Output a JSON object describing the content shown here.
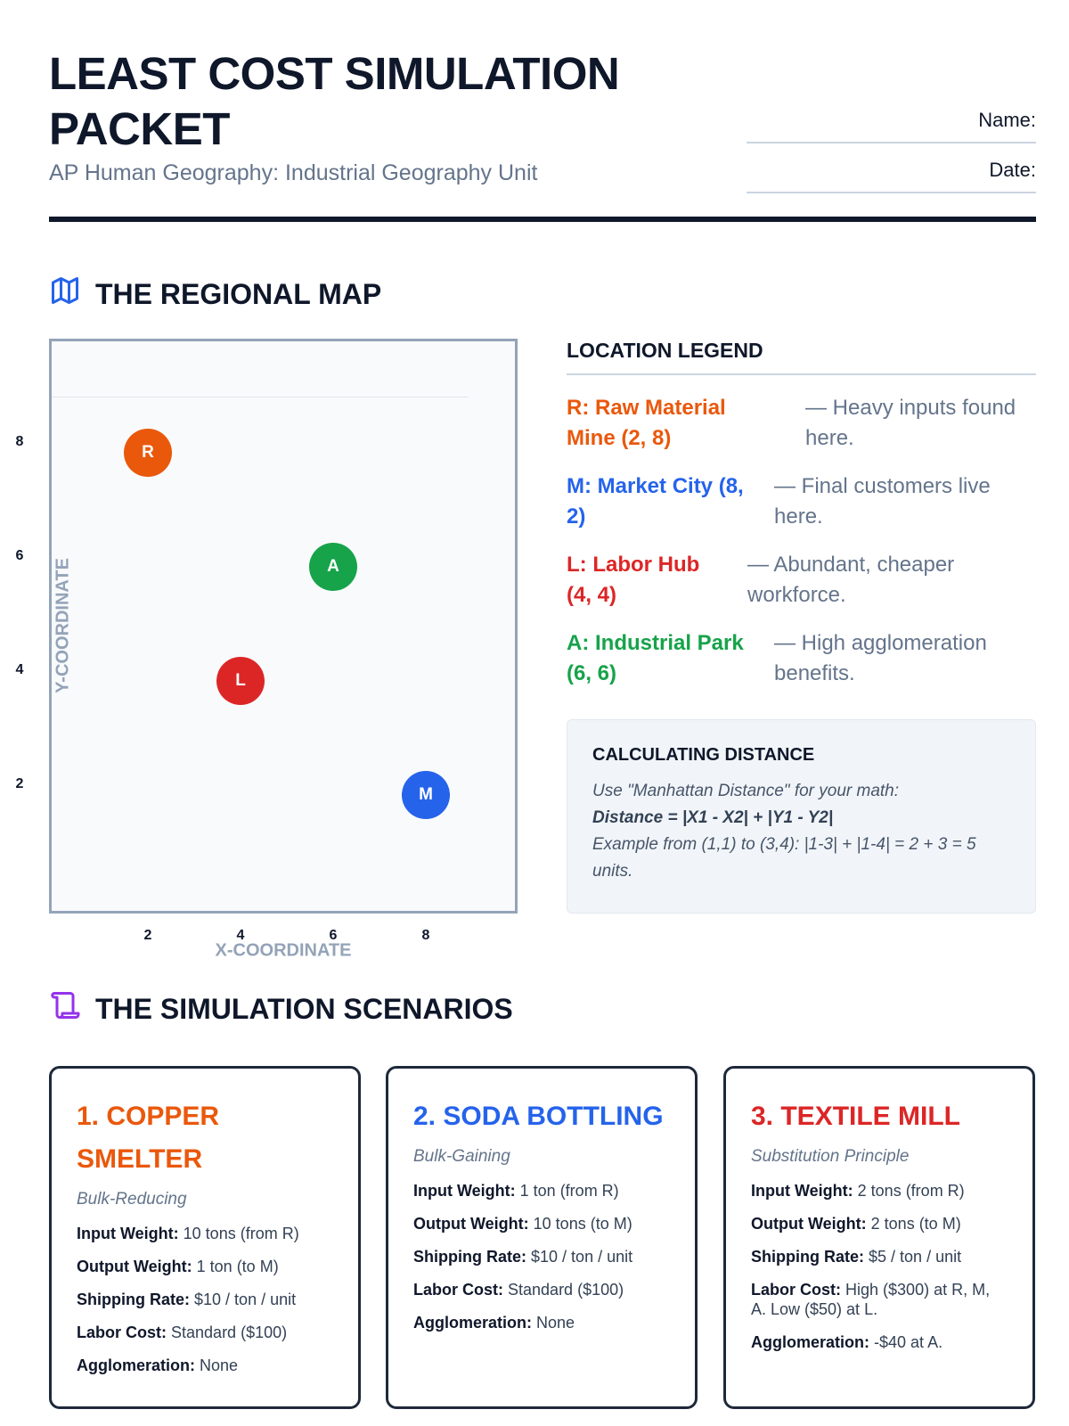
{
  "header": {
    "title": "LEAST COST SIMULATION PACKET",
    "subtitle": "AP Human Geography: Industrial Geography Unit",
    "name_label": "Name:",
    "date_label": "Date:"
  },
  "map_section": {
    "heading": "THE REGIONAL MAP",
    "icon": "map-icon"
  },
  "chart_data": {
    "type": "scatter",
    "xlabel": "X-COORDINATE",
    "ylabel": "Y-COORDINATE",
    "x_ticks": [
      "2",
      "4",
      "6",
      "8"
    ],
    "y_ticks": [
      "8",
      "6",
      "4",
      "2"
    ],
    "xlim": [
      0,
      10
    ],
    "ylim": [
      0,
      10
    ],
    "points": [
      {
        "label": "R",
        "x": 2,
        "y": 8,
        "color": "#ea580c"
      },
      {
        "label": "A",
        "x": 6,
        "y": 6,
        "color": "#16a34a"
      },
      {
        "label": "L",
        "x": 4,
        "y": 4,
        "color": "#dc2626"
      },
      {
        "label": "M",
        "x": 8,
        "y": 2,
        "color": "#2563eb"
      }
    ]
  },
  "legend": {
    "heading": "LOCATION LEGEND",
    "items": [
      {
        "name": "R: Raw Material Mine (2, 8)",
        "desc": "— Heavy inputs found here.",
        "color": "#ea580c"
      },
      {
        "name": "M: Market City (8, 2)",
        "desc": "— Final customers live here.",
        "color": "#2563eb"
      },
      {
        "name": "L: Labor Hub (4, 4)",
        "desc": "— Abundant, cheaper workforce.",
        "color": "#dc2626"
      },
      {
        "name": "A: Industrial Park (6, 6)",
        "desc": "— High agglomeration benefits.",
        "color": "#16a34a"
      }
    ]
  },
  "calc": {
    "heading": "CALCULATING DISTANCE",
    "intro": "Use \"Manhattan Distance\" for your math:",
    "formula": "Distance = |X1 - X2| + |Y1 - Y2|",
    "example": "Example from (1,1) to (3,4): |1-3| + |1-4| = 2 + 3 = 5 units."
  },
  "scenarios_section": {
    "heading": "THE SIMULATION SCENARIOS",
    "icon": "scroll-icon"
  },
  "scenarios": [
    {
      "title": "1. COPPER SMELTER",
      "type": "Bulk-Reducing",
      "color": "#ea580c",
      "rows": [
        {
          "k": "Input Weight:",
          "v": "10 tons (from R)"
        },
        {
          "k": "Output Weight:",
          "v": "1 ton (to M)"
        },
        {
          "k": "Shipping Rate:",
          "v": "$10 / ton / unit"
        },
        {
          "k": "Labor Cost:",
          "v": "Standard ($100)"
        },
        {
          "k": "Agglomeration:",
          "v": "None"
        }
      ]
    },
    {
      "title": "2. SODA BOTTLING",
      "type": "Bulk-Gaining",
      "color": "#2563eb",
      "rows": [
        {
          "k": "Input Weight:",
          "v": "1 ton (from R)"
        },
        {
          "k": "Output Weight:",
          "v": "10 tons (to M)"
        },
        {
          "k": "Shipping Rate:",
          "v": "$10 / ton / unit"
        },
        {
          "k": "Labor Cost:",
          "v": "Standard ($100)"
        },
        {
          "k": "Agglomeration:",
          "v": "None"
        }
      ]
    },
    {
      "title": "3. TEXTILE MILL",
      "type": "Substitution Principle",
      "color": "#dc2626",
      "rows": [
        {
          "k": "Input Weight:",
          "v": "2 tons (from R)"
        },
        {
          "k": "Output Weight:",
          "v": "2 tons (to M)"
        },
        {
          "k": "Shipping Rate:",
          "v": "$5 / ton / unit"
        },
        {
          "k": "Labor Cost:",
          "v": "High ($300) at R, M, A. Low ($50) at L."
        },
        {
          "k": "Agglomeration:",
          "v": "-$40 at A."
        }
      ]
    }
  ]
}
